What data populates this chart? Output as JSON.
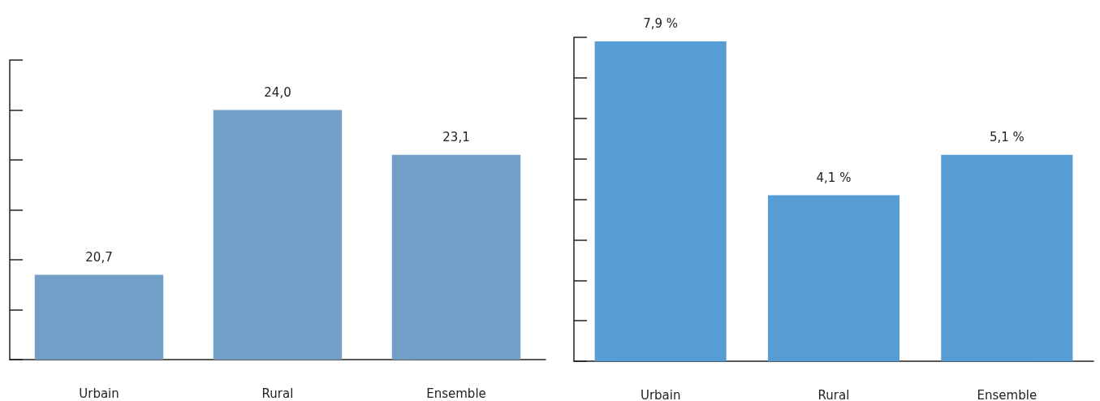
{
  "chart_data": [
    {
      "type": "bar",
      "categories": [
        "Urbain",
        "Rural",
        "Ensemble"
      ],
      "values": [
        20.7,
        24.0,
        23.1
      ],
      "value_labels": [
        "20,7",
        "24,0",
        "23,1"
      ],
      "color": "#729fc8",
      "ylim": [
        19,
        25
      ],
      "yticks": [
        {
          "value": 19,
          "label": null
        },
        {
          "value": 20,
          "label": null
        },
        {
          "value": 21,
          "label": null
        },
        {
          "value": 22,
          "label": null
        },
        {
          "value": 23,
          "label": null
        },
        {
          "value": 24,
          "label": null
        },
        {
          "value": 25,
          "label": null
        }
      ]
    },
    {
      "type": "bar",
      "categories": [
        "Urbain",
        "Rural",
        "Ensemble"
      ],
      "values": [
        7.9,
        4.1,
        5.1
      ],
      "value_labels": [
        "7,9 %",
        "4,1 %",
        "5,1 %"
      ],
      "color": "#559dd4",
      "ylim": [
        0,
        8
      ],
      "yticks": [
        {
          "value": 0,
          "label": null
        },
        {
          "value": 1,
          "label": null
        },
        {
          "value": 2,
          "label": null
        },
        {
          "value": 3,
          "label": null
        },
        {
          "value": 4,
          "label": null
        },
        {
          "value": 5,
          "label": null
        },
        {
          "value": 6,
          "label": null
        },
        {
          "value": 7,
          "label": null
        },
        {
          "value": 8,
          "label": null
        }
      ]
    }
  ]
}
